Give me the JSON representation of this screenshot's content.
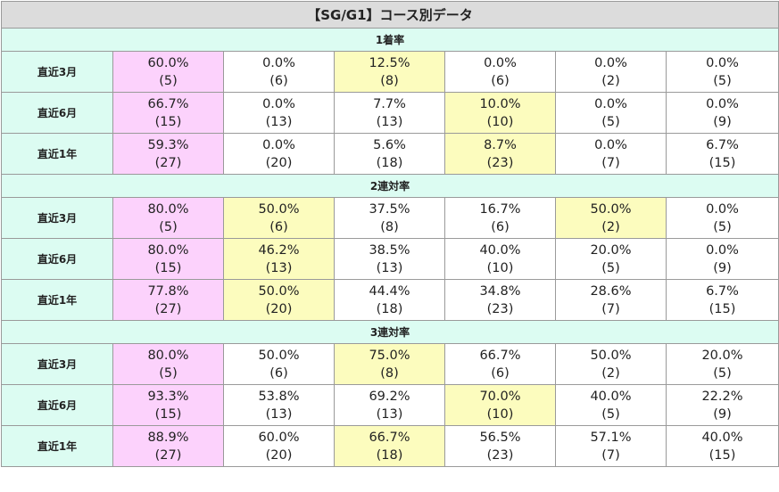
{
  "title": "【SG/G1】コース別データ",
  "colors": {
    "pink": "#fcd2fc",
    "yellow": "#fcfcbe",
    "section_bg": "#dcfcf2",
    "title_bg": "#dcdcdc"
  },
  "sections": [
    {
      "label": "1着率",
      "rows": [
        {
          "label": "直近3月",
          "cells": [
            {
              "rate": "60.0%",
              "count": "(5)",
              "hl": "pink"
            },
            {
              "rate": "0.0%",
              "count": "(6)",
              "hl": ""
            },
            {
              "rate": "12.5%",
              "count": "(8)",
              "hl": "yellow"
            },
            {
              "rate": "0.0%",
              "count": "(6)",
              "hl": ""
            },
            {
              "rate": "0.0%",
              "count": "(2)",
              "hl": ""
            },
            {
              "rate": "0.0%",
              "count": "(5)",
              "hl": ""
            }
          ]
        },
        {
          "label": "直近6月",
          "cells": [
            {
              "rate": "66.7%",
              "count": "(15)",
              "hl": "pink"
            },
            {
              "rate": "0.0%",
              "count": "(13)",
              "hl": ""
            },
            {
              "rate": "7.7%",
              "count": "(13)",
              "hl": ""
            },
            {
              "rate": "10.0%",
              "count": "(10)",
              "hl": "yellow"
            },
            {
              "rate": "0.0%",
              "count": "(5)",
              "hl": ""
            },
            {
              "rate": "0.0%",
              "count": "(9)",
              "hl": ""
            }
          ]
        },
        {
          "label": "直近1年",
          "cells": [
            {
              "rate": "59.3%",
              "count": "(27)",
              "hl": "pink"
            },
            {
              "rate": "0.0%",
              "count": "(20)",
              "hl": ""
            },
            {
              "rate": "5.6%",
              "count": "(18)",
              "hl": ""
            },
            {
              "rate": "8.7%",
              "count": "(23)",
              "hl": "yellow"
            },
            {
              "rate": "0.0%",
              "count": "(7)",
              "hl": ""
            },
            {
              "rate": "6.7%",
              "count": "(15)",
              "hl": ""
            }
          ]
        }
      ]
    },
    {
      "label": "2連対率",
      "rows": [
        {
          "label": "直近3月",
          "cells": [
            {
              "rate": "80.0%",
              "count": "(5)",
              "hl": "pink"
            },
            {
              "rate": "50.0%",
              "count": "(6)",
              "hl": "yellow"
            },
            {
              "rate": "37.5%",
              "count": "(8)",
              "hl": ""
            },
            {
              "rate": "16.7%",
              "count": "(6)",
              "hl": ""
            },
            {
              "rate": "50.0%",
              "count": "(2)",
              "hl": "yellow"
            },
            {
              "rate": "0.0%",
              "count": "(5)",
              "hl": ""
            }
          ]
        },
        {
          "label": "直近6月",
          "cells": [
            {
              "rate": "80.0%",
              "count": "(15)",
              "hl": "pink"
            },
            {
              "rate": "46.2%",
              "count": "(13)",
              "hl": "yellow"
            },
            {
              "rate": "38.5%",
              "count": "(13)",
              "hl": ""
            },
            {
              "rate": "40.0%",
              "count": "(10)",
              "hl": ""
            },
            {
              "rate": "20.0%",
              "count": "(5)",
              "hl": ""
            },
            {
              "rate": "0.0%",
              "count": "(9)",
              "hl": ""
            }
          ]
        },
        {
          "label": "直近1年",
          "cells": [
            {
              "rate": "77.8%",
              "count": "(27)",
              "hl": "pink"
            },
            {
              "rate": "50.0%",
              "count": "(20)",
              "hl": "yellow"
            },
            {
              "rate": "44.4%",
              "count": "(18)",
              "hl": ""
            },
            {
              "rate": "34.8%",
              "count": "(23)",
              "hl": ""
            },
            {
              "rate": "28.6%",
              "count": "(7)",
              "hl": ""
            },
            {
              "rate": "6.7%",
              "count": "(15)",
              "hl": ""
            }
          ]
        }
      ]
    },
    {
      "label": "3連対率",
      "rows": [
        {
          "label": "直近3月",
          "cells": [
            {
              "rate": "80.0%",
              "count": "(5)",
              "hl": "pink"
            },
            {
              "rate": "50.0%",
              "count": "(6)",
              "hl": ""
            },
            {
              "rate": "75.0%",
              "count": "(8)",
              "hl": "yellow"
            },
            {
              "rate": "66.7%",
              "count": "(6)",
              "hl": ""
            },
            {
              "rate": "50.0%",
              "count": "(2)",
              "hl": ""
            },
            {
              "rate": "20.0%",
              "count": "(5)",
              "hl": ""
            }
          ]
        },
        {
          "label": "直近6月",
          "cells": [
            {
              "rate": "93.3%",
              "count": "(15)",
              "hl": "pink"
            },
            {
              "rate": "53.8%",
              "count": "(13)",
              "hl": ""
            },
            {
              "rate": "69.2%",
              "count": "(13)",
              "hl": ""
            },
            {
              "rate": "70.0%",
              "count": "(10)",
              "hl": "yellow"
            },
            {
              "rate": "40.0%",
              "count": "(5)",
              "hl": ""
            },
            {
              "rate": "22.2%",
              "count": "(9)",
              "hl": ""
            }
          ]
        },
        {
          "label": "直近1年",
          "cells": [
            {
              "rate": "88.9%",
              "count": "(27)",
              "hl": "pink"
            },
            {
              "rate": "60.0%",
              "count": "(20)",
              "hl": ""
            },
            {
              "rate": "66.7%",
              "count": "(18)",
              "hl": "yellow"
            },
            {
              "rate": "56.5%",
              "count": "(23)",
              "hl": ""
            },
            {
              "rate": "57.1%",
              "count": "(7)",
              "hl": ""
            },
            {
              "rate": "40.0%",
              "count": "(15)",
              "hl": ""
            }
          ]
        }
      ]
    }
  ]
}
